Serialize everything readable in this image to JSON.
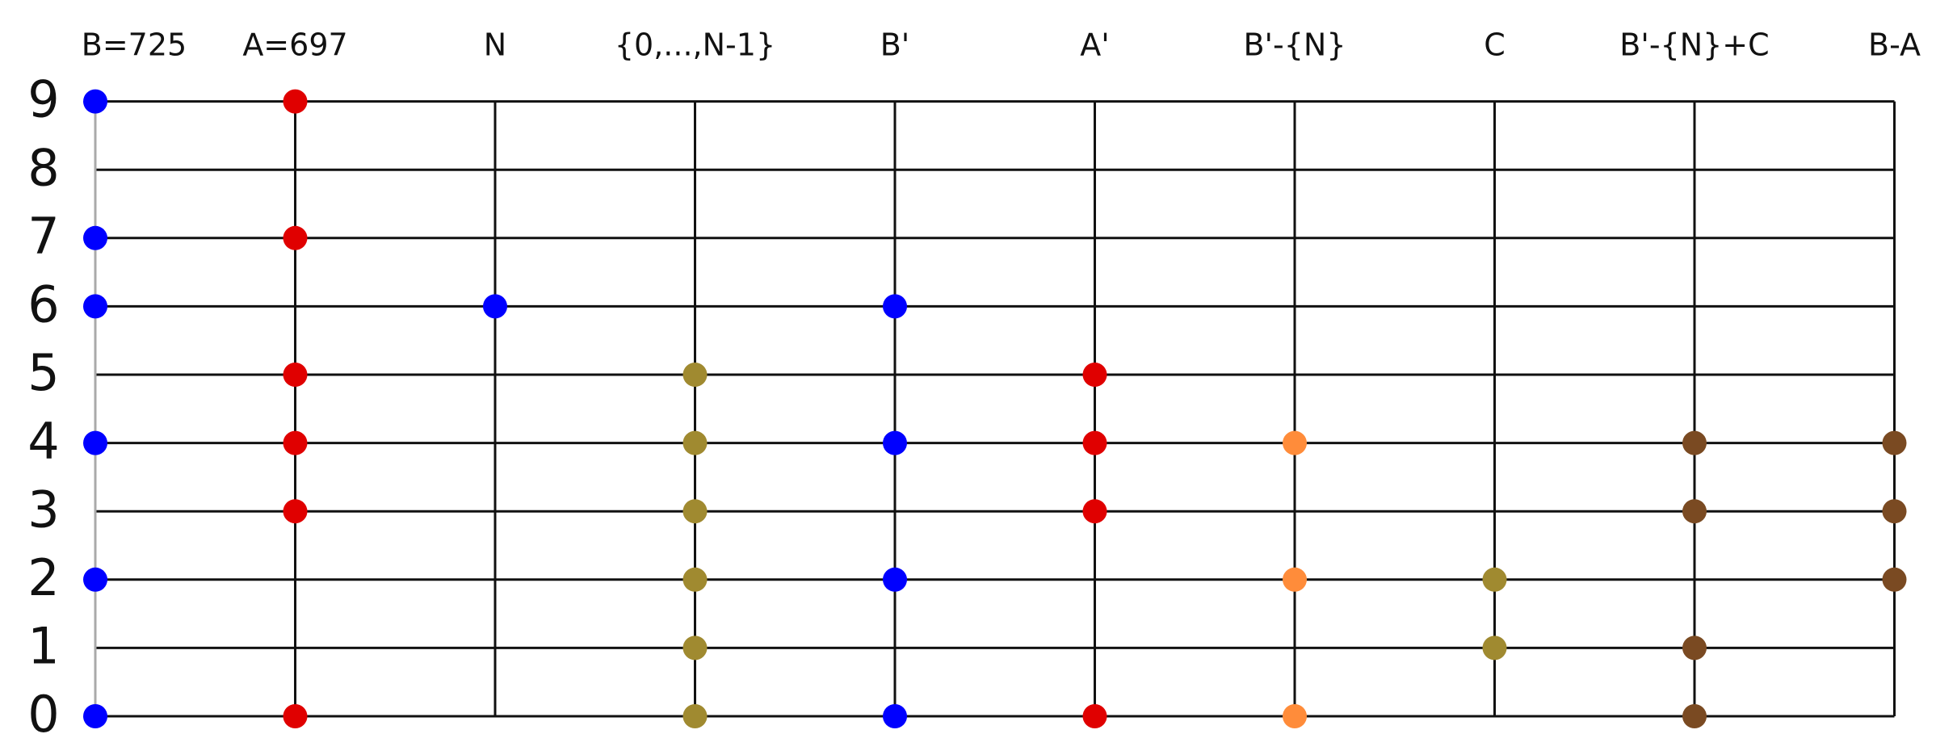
{
  "rows": [
    0,
    1,
    2,
    3,
    4,
    5,
    6,
    7,
    8,
    9
  ],
  "columns": [
    {
      "label": "B=725",
      "color": "#0000ff",
      "digits": [
        9,
        7,
        6,
        4,
        2,
        0
      ]
    },
    {
      "label": "A=697",
      "color": "#e00000",
      "digits": [
        9,
        7,
        5,
        4,
        3,
        0
      ]
    },
    {
      "label": "N",
      "color": "#0000ff",
      "digits": [
        6
      ]
    },
    {
      "label": "{0,...,N-1}",
      "color": "#a08a30",
      "digits": [
        5,
        4,
        3,
        2,
        1,
        0
      ]
    },
    {
      "label": "B'",
      "color": "#0000ff",
      "digits": [
        6,
        4,
        2,
        0
      ]
    },
    {
      "label": "A'",
      "color": "#e00000",
      "digits": [
        5,
        4,
        3,
        0
      ]
    },
    {
      "label": "B'-{N}",
      "color": "#ff8c3a",
      "digits": [
        4,
        2,
        0
      ]
    },
    {
      "label": "C",
      "color": "#a08a30",
      "digits": [
        2,
        1
      ]
    },
    {
      "label": "B'-{N}+C",
      "color": "#7a4a22",
      "digits": [
        4,
        3,
        1,
        0
      ]
    },
    {
      "label": "B-A",
      "color": "#7a4a22",
      "digits": [
        4,
        3,
        2
      ]
    }
  ]
}
